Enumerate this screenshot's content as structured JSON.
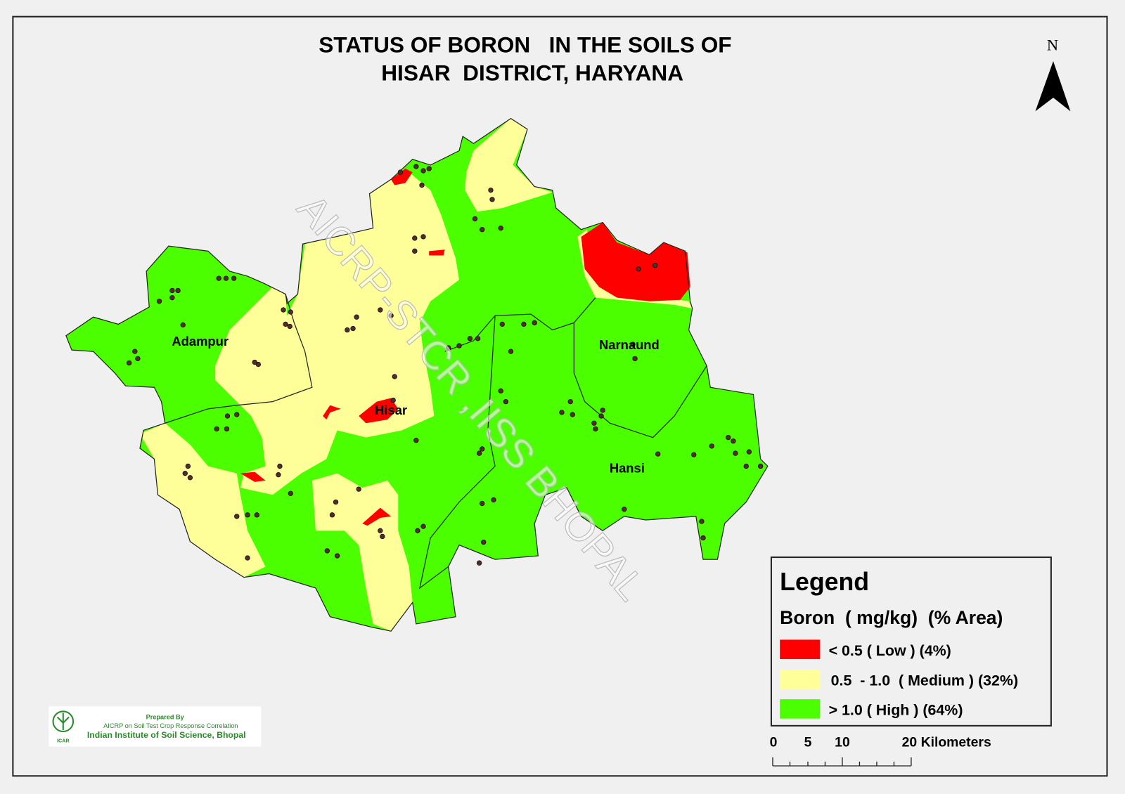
{
  "title": [
    "STATUS OF BORON   IN THE SOILS OF",
    "HISAR  DISTRICT, HARYANA"
  ],
  "north": "N",
  "places": [
    "Adampur",
    "Hisar",
    "Narnaund",
    "Hansi"
  ],
  "watermark": "AICRP-STCR ,IISS BHOPAL",
  "legend": {
    "title": "Legend",
    "subtitle": "Boron  ( mg/kg)  (% Area)",
    "items": [
      {
        "label": "< 0.5 ( Low ) (4%)",
        "color": "#ff0000"
      },
      {
        "label": "0.5  - 1.0  ( Medium ) (32%)",
        "color": "#ffff99"
      },
      {
        "label": "> 1.0 ( High ) (64%)",
        "color": "#4cff00"
      }
    ]
  },
  "scale": {
    "labels": [
      "0",
      "5",
      "10",
      "20 Kilometers"
    ]
  },
  "credit": {
    "logo": "ICAR",
    "lines": [
      "Prepared By",
      "AICRP on Soil Test Crop Response Correlation",
      "Indian Institute of Soil Science, Bhopal"
    ]
  }
}
